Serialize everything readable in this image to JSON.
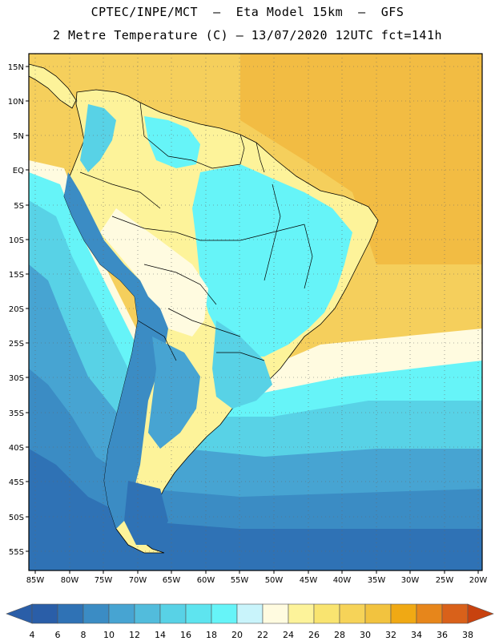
{
  "title": {
    "line1": "CPTEC/INPE/MCT  –  Eta Model 15km  –  GFS",
    "line2": "2 Metre Temperature (C) – 13/07/2020 12UTC fct=141h"
  },
  "map": {
    "lat_labels": [
      "15N",
      "10N",
      "5N",
      "EQ",
      "5S",
      "10S",
      "15S",
      "20S",
      "25S",
      "30S",
      "35S",
      "40S",
      "45S",
      "50S",
      "55S"
    ],
    "lon_labels": [
      "85W",
      "80W",
      "75W",
      "70W",
      "65W",
      "60W",
      "55W",
      "50W",
      "45W",
      "40W",
      "35W",
      "30W",
      "25W",
      "20W"
    ],
    "colors": {
      "ocean_warm": "#f6cd55",
      "ocean_hot": "#f2b53a",
      "coast_line": "#000000",
      "grid": "#666666"
    }
  },
  "colorbar": {
    "ticks": [
      "4",
      "6",
      "8",
      "10",
      "12",
      "14",
      "16",
      "18",
      "20",
      "22",
      "24",
      "26",
      "28",
      "30",
      "32",
      "34",
      "36",
      "38"
    ],
    "colors": [
      "#2a5ea8",
      "#2f72b5",
      "#3b8cc4",
      "#47a4d2",
      "#52bcdc",
      "#58d2e6",
      "#5ee4ef",
      "#66f4f8",
      "#c9f4fb",
      "#fffbe0",
      "#fdf39a",
      "#f9e470",
      "#f6d358",
      "#f2c33f",
      "#f0a914",
      "#e7861b",
      "#d9611a",
      "#c8420f"
    ]
  }
}
